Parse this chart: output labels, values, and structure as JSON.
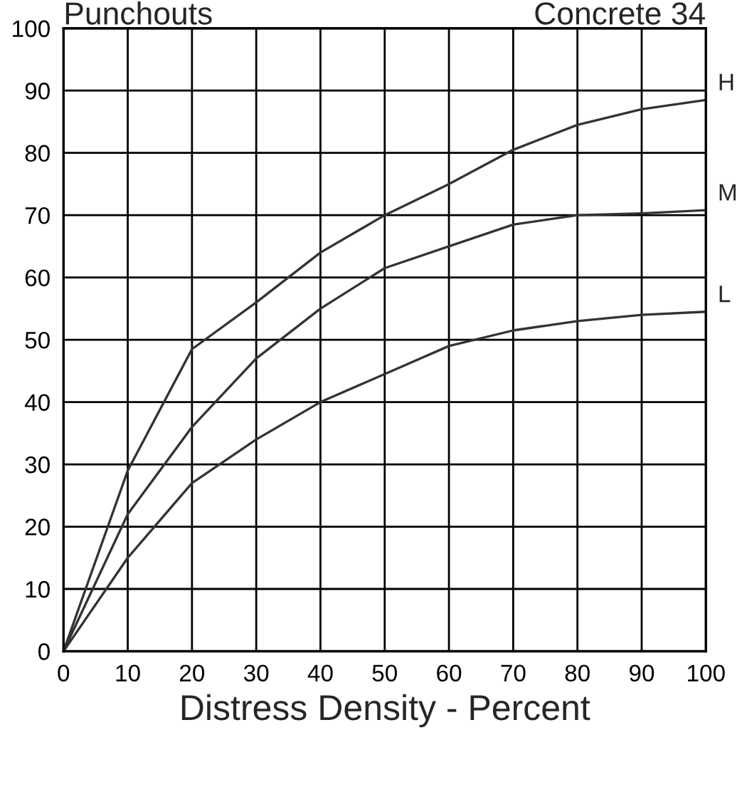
{
  "chart_data": {
    "type": "line",
    "title": "Punchouts",
    "subtitle": "Concrete 34",
    "xlabel": "Distress Density - Percent",
    "x": [
      0,
      10,
      20,
      30,
      40,
      50,
      60,
      70,
      80,
      90,
      100
    ],
    "series": [
      {
        "name": "H",
        "color": "#333333",
        "values": [
          0,
          29,
          48.5,
          56,
          64,
          70,
          75,
          80.5,
          84.5,
          87,
          88.5
        ]
      },
      {
        "name": "M",
        "color": "#333333",
        "values": [
          0,
          22,
          36,
          47,
          55,
          61.5,
          65,
          68.5,
          70,
          70.3,
          70.8
        ]
      },
      {
        "name": "L",
        "color": "#333333",
        "values": [
          0,
          15,
          27,
          34,
          40,
          44.5,
          49,
          51.5,
          53,
          54,
          54.5
        ]
      }
    ],
    "xlim": [
      0,
      100
    ],
    "ylim": [
      0,
      100
    ],
    "xticks": [
      0,
      10,
      20,
      30,
      40,
      50,
      60,
      70,
      80,
      90,
      100
    ],
    "yticks": [
      0,
      10,
      20,
      30,
      40,
      50,
      60,
      70,
      80,
      90,
      100
    ],
    "grid": true,
    "legend": false,
    "marker": "none",
    "line_style": "solid"
  }
}
